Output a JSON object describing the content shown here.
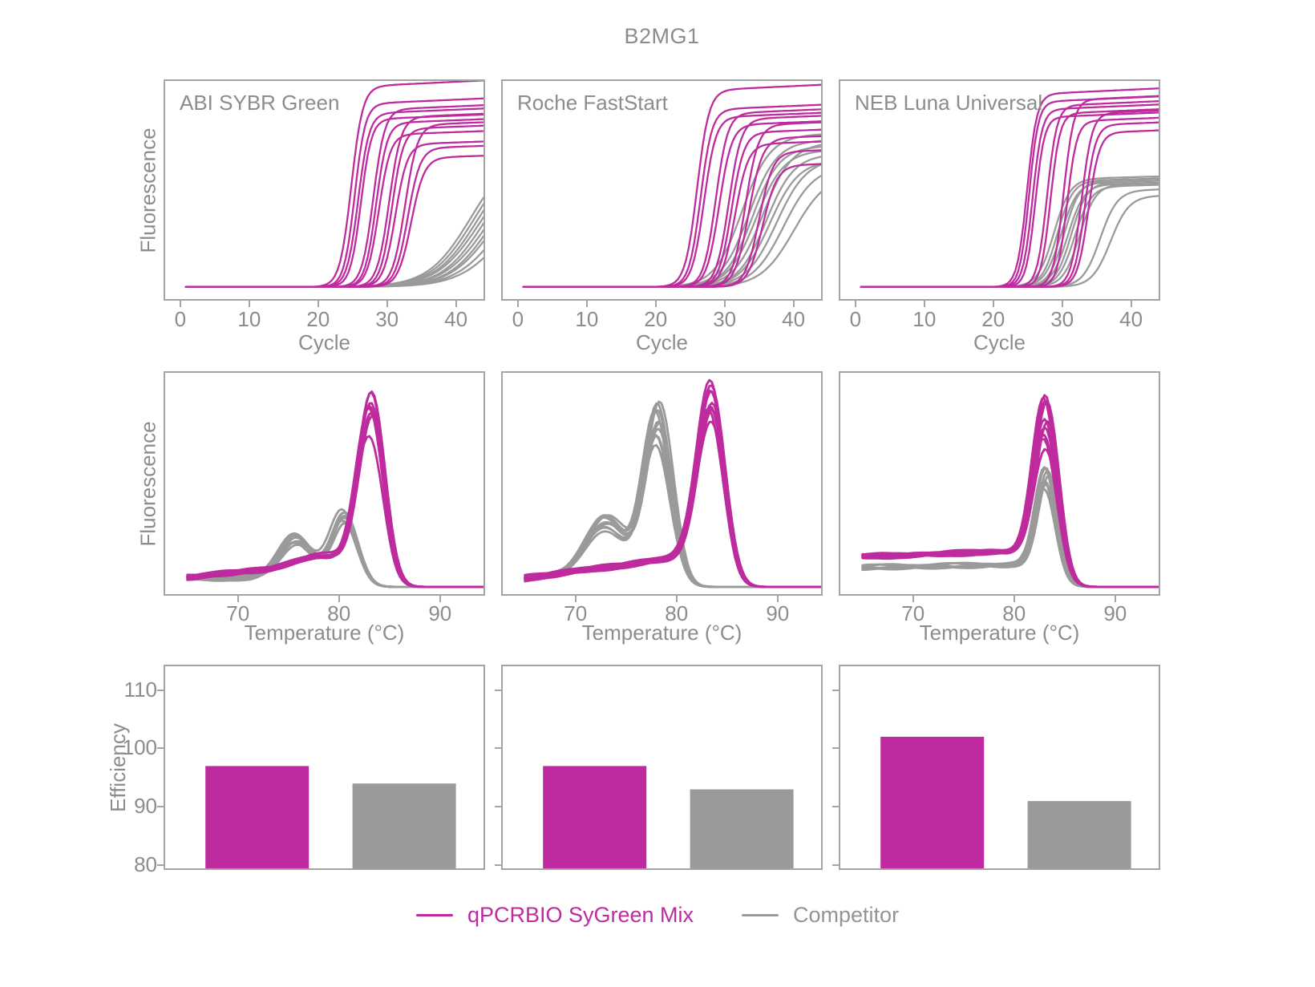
{
  "colors": {
    "magenta": "#BE2B9E",
    "gray": "#9A9A9A",
    "axis": "#A4A4A4",
    "text": "#8C8C8C"
  },
  "legend": {
    "items": [
      {
        "label": "qPCRBIO SyGreen Mix",
        "color": "#BE2B9E",
        "label_color": "#BE2B9E"
      },
      {
        "label": "Competitor",
        "color": "#9A9A9A",
        "label_color": "#949494"
      }
    ]
  },
  "chart_data": {
    "title": "B2MG1",
    "columns": [
      "ABI SYBR Green",
      "Roche FastStart",
      "NEB Luna Universal"
    ],
    "amplification": {
      "type": "line",
      "xlabel": "Cycle",
      "ylabel": "Fluorescence",
      "xticks": [
        0,
        10,
        20,
        30,
        40
      ],
      "xlim": [
        -2.2,
        44
      ],
      "ylim_note": "fluorescence normalized 0-1, no y ticks shown",
      "panels": [
        {
          "label": "ABI SYBR Green",
          "series": [
            {
              "name": "Competitor",
              "color_key": "gray",
              "curves": [
                [
                  42,
                  0.7,
                  0.33
                ],
                [
                  42.5,
                  0.69,
                  0.33
                ],
                [
                  43,
                  0.68,
                  0.33
                ],
                [
                  43.5,
                  0.67,
                  0.32
                ],
                [
                  44,
                  0.66,
                  0.33
                ],
                [
                  44.5,
                  0.64,
                  0.32
                ],
                [
                  45,
                  0.63,
                  0.33
                ],
                [
                  45.5,
                  0.62,
                  0.32
                ],
                [
                  46.5,
                  0.6,
                  0.31
                ],
                [
                  47.5,
                  0.58,
                  0.3
                ]
              ]
            },
            {
              "name": "qPCRBIO SyGreen Mix",
              "color_key": "magenta",
              "curves": [
                [
                  24.8,
                  1.04,
                  1.2
                ],
                [
                  25.3,
                  0.95,
                  1.3
                ],
                [
                  25.8,
                  0.9,
                  1.25
                ],
                [
                  26.2,
                  0.87,
                  1.3
                ],
                [
                  28.0,
                  0.92,
                  1.2
                ],
                [
                  28.4,
                  0.85,
                  1.25
                ],
                [
                  28.8,
                  0.79,
                  1.2
                ],
                [
                  30.3,
                  0.88,
                  1.15
                ],
                [
                  30.7,
                  0.82,
                  1.2
                ],
                [
                  31.2,
                  0.74,
                  1.15
                ],
                [
                  32.6,
                  0.84,
                  1.1
                ],
                [
                  33.0,
                  0.72,
                  1.1
                ],
                [
                  33.5,
                  0.67,
                  1.05
                ]
              ]
            }
          ]
        },
        {
          "label": "Roche FastStart",
          "series": [
            {
              "name": "Competitor",
              "color_key": "gray",
              "curves": [
                [
                  32.5,
                  0.78,
                  0.5
                ],
                [
                  33.5,
                  0.75,
                  0.5
                ],
                [
                  34,
                  0.72,
                  0.52
                ],
                [
                  34.5,
                  0.7,
                  0.5
                ],
                [
                  35.5,
                  0.74,
                  0.48
                ],
                [
                  36,
                  0.68,
                  0.5
                ],
                [
                  36.5,
                  0.65,
                  0.48
                ],
                [
                  37.5,
                  0.66,
                  0.46
                ],
                [
                  38.5,
                  0.62,
                  0.45
                ],
                [
                  40,
                  0.58,
                  0.42
                ]
              ]
            },
            {
              "name": "qPCRBIO SyGreen Mix",
              "color_key": "magenta",
              "curves": [
                [
                  26.0,
                  1.02,
                  1.15
                ],
                [
                  26.5,
                  0.92,
                  1.2
                ],
                [
                  27.0,
                  0.88,
                  1.15
                ],
                [
                  28.7,
                  0.9,
                  1.15
                ],
                [
                  29.2,
                  0.84,
                  1.1
                ],
                [
                  30.6,
                  0.87,
                  1.1
                ],
                [
                  31.0,
                  0.8,
                  1.1
                ],
                [
                  31.5,
                  0.74,
                  1.05
                ],
                [
                  33.0,
                  0.84,
                  1.05
                ],
                [
                  33.5,
                  0.77,
                  1.0
                ],
                [
                  35.0,
                  0.7,
                  1.0
                ],
                [
                  35.5,
                  0.63,
                  0.95
                ]
              ]
            }
          ]
        },
        {
          "label": "NEB Luna Universal",
          "series": [
            {
              "name": "Competitor",
              "color_key": "gray",
              "curves": [
                [
                  28.8,
                  0.56,
                  0.85
                ],
                [
                  29.3,
                  0.55,
                  0.9
                ],
                [
                  29.8,
                  0.54,
                  0.85
                ],
                [
                  30.3,
                  0.55,
                  0.9
                ],
                [
                  30.8,
                  0.53,
                  0.85
                ],
                [
                  31.3,
                  0.54,
                  0.88
                ],
                [
                  31.8,
                  0.52,
                  0.85
                ],
                [
                  32.5,
                  0.53,
                  0.85
                ],
                [
                  35.5,
                  0.5,
                  0.8
                ],
                [
                  37.0,
                  0.47,
                  0.75
                ]
              ]
            },
            {
              "name": "qPCRBIO SyGreen Mix",
              "color_key": "magenta",
              "curves": [
                [
                  24.9,
                  1.0,
                  1.4
                ],
                [
                  25.2,
                  0.96,
                  1.5
                ],
                [
                  25.7,
                  0.92,
                  1.45
                ],
                [
                  26.1,
                  0.88,
                  1.5
                ],
                [
                  27.8,
                  0.94,
                  1.4
                ],
                [
                  28.3,
                  0.9,
                  1.45
                ],
                [
                  30.2,
                  0.97,
                  1.35
                ],
                [
                  30.7,
                  0.86,
                  1.4
                ],
                [
                  32.8,
                  0.9,
                  1.3
                ],
                [
                  33.3,
                  0.84,
                  1.3
                ],
                [
                  33.8,
                  0.8,
                  1.25
                ]
              ]
            }
          ]
        }
      ]
    },
    "melt": {
      "type": "line",
      "xlabel": "Temperature (°C)",
      "ylabel": "Fluorescence",
      "xticks": [
        70,
        80,
        90
      ],
      "xlim": [
        62.8,
        94.3
      ],
      "panels": [
        {
          "label": "ABI SYBR Green",
          "series": [
            {
              "name": "Competitor",
              "color_key": "gray",
              "replicates": 9,
              "height_spread": 0.25,
              "baseline": [
                0.045,
                0.05
              ],
              "cutoff": 82.6,
              "peaks": [
                [
                  75.7,
                  0.22,
                  1.6
                ],
                [
                  80.5,
                  0.35,
                  1.25
                ]
              ]
            },
            {
              "name": "qPCRBIO SyGreen Mix",
              "color_key": "magenta",
              "replicates": 10,
              "height_spread": 0.35,
              "baseline": [
                0.05,
                0.13
              ],
              "cutoff": 84.8,
              "peaks": [
                [
                  83.2,
                  0.92,
                  1.3
                ],
                [
                  77.8,
                  0.05,
                  2.2
                ]
              ]
            }
          ]
        },
        {
          "label": "Roche FastStart",
          "series": [
            {
              "name": "Competitor",
              "color_key": "gray",
              "replicates": 10,
              "height_spread": 0.3,
              "baseline": [
                0.04,
                0.1
              ],
              "cutoff": 80.6,
              "peaks": [
                [
                  72.9,
                  0.3,
                  1.9
                ],
                [
                  78.1,
                  0.88,
                  1.3
                ]
              ]
            },
            {
              "name": "qPCRBIO SyGreen Mix",
              "color_key": "magenta",
              "replicates": 10,
              "height_spread": 0.3,
              "baseline": [
                0.045,
                0.16
              ],
              "cutoff": 85.2,
              "peaks": [
                [
                  83.3,
                  0.9,
                  1.35
                ]
              ]
            }
          ]
        },
        {
          "label": "NEB Luna Universal",
          "series": [
            {
              "name": "Competitor",
              "color_key": "gray",
              "replicates": 8,
              "height_spread": 0.22,
              "baseline": [
                0.1,
                0.115
              ],
              "cutoff": 84.6,
              "peaks": [
                [
                  83.2,
                  0.5,
                  1.0
                ]
              ]
            },
            {
              "name": "qPCRBIO SyGreen Mix",
              "color_key": "magenta",
              "replicates": 10,
              "height_spread": 0.35,
              "baseline": [
                0.155,
                0.17
              ],
              "cutoff": 84.9,
              "peaks": [
                [
                  83.1,
                  0.83,
                  1.15
                ],
                [
                  76.5,
                  0.012,
                  3
                ]
              ]
            }
          ]
        }
      ]
    },
    "efficiency": {
      "type": "bar",
      "ylabel": "Efficiency",
      "yticks": [
        80,
        90,
        100,
        110
      ],
      "ylim": [
        79.5,
        114.05
      ],
      "categories": [
        "qPCRBIO SyGreen Mix",
        "Competitor"
      ],
      "panels": [
        {
          "label": "ABI SYBR Green",
          "values": [
            97,
            94
          ]
        },
        {
          "label": "Roche FastStart",
          "values": [
            97,
            93
          ]
        },
        {
          "label": "NEB Luna Universal",
          "values": [
            102,
            91
          ]
        }
      ]
    }
  }
}
